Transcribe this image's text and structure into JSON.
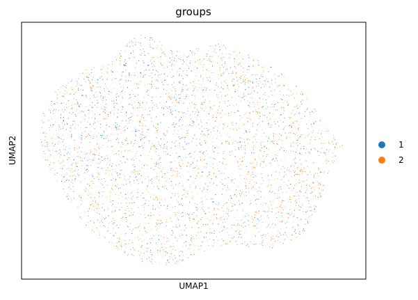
{
  "chart_data": {
    "type": "scatter",
    "title": "groups",
    "xlabel": "UMAP1",
    "ylabel": "UMAP2",
    "grid": false,
    "ticks": false,
    "xlim": [
      0,
      1
    ],
    "ylim": [
      0,
      1
    ],
    "legend_position": "right",
    "series": [
      {
        "name": "1",
        "color": "#1f77b4"
      },
      {
        "name": "2",
        "color": "#ff7f0e"
      }
    ]
  }
}
